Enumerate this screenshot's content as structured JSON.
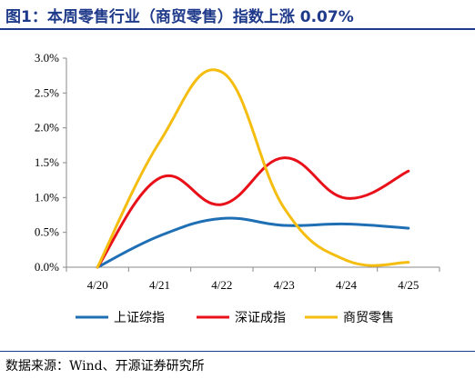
{
  "title": "图1：本周零售行业（商贸零售）指数上涨 0.07%",
  "source": "数据来源：Wind、开源证券研究所",
  "chart_data": {
    "type": "line",
    "x": [
      "4/20",
      "4/21",
      "4/22",
      "4/23",
      "4/24",
      "4/25"
    ],
    "ylim": [
      0,
      3.0
    ],
    "yticks": [
      "0.0%",
      "0.5%",
      "1.0%",
      "1.5%",
      "2.0%",
      "2.5%",
      "3.0%"
    ],
    "ytick_values": [
      0,
      0.5,
      1.0,
      1.5,
      2.0,
      2.5,
      3.0
    ],
    "legend_position": "bottom",
    "grid": false,
    "series": [
      {
        "name": "上证综指",
        "color": "#1f6fb5",
        "values": [
          0.0,
          0.45,
          0.7,
          0.6,
          0.62,
          0.56
        ]
      },
      {
        "name": "深证成指",
        "color": "#e8111a",
        "values": [
          0.0,
          1.28,
          0.9,
          1.57,
          0.99,
          1.38
        ]
      },
      {
        "name": "商贸零售",
        "color": "#f5bd0f",
        "values": [
          0.0,
          1.8,
          2.8,
          0.85,
          0.1,
          0.07
        ]
      }
    ]
  }
}
